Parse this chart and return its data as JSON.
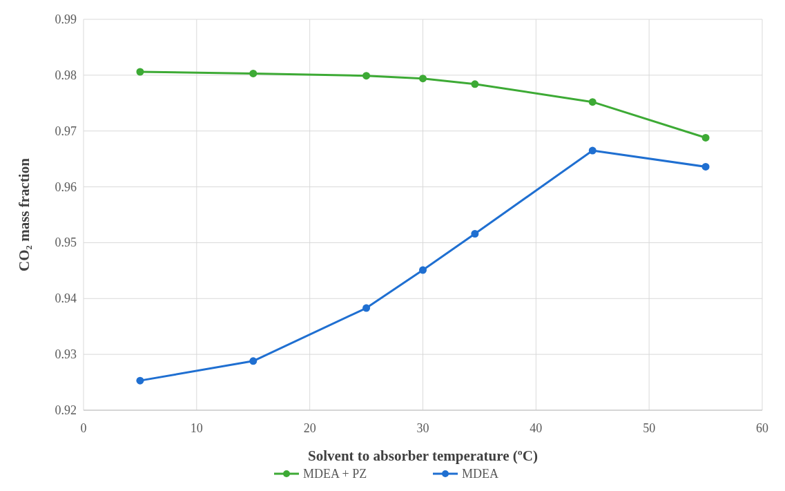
{
  "chart_data": {
    "type": "line",
    "xlabel": "Solvent to absorber temperature (ºC)",
    "ylabel": "CO₂  mass fraction",
    "x": [
      5,
      15,
      25,
      30,
      34.6,
      45,
      55
    ],
    "series": [
      {
        "name": "MDEA + PZ",
        "color": "#3daa35",
        "values": [
          0.9806,
          0.9803,
          0.9799,
          0.9794,
          0.9784,
          0.9752,
          0.9688
        ]
      },
      {
        "name": "MDEA",
        "color": "#1f6fd1",
        "values": [
          0.9253,
          0.9288,
          0.9383,
          0.9451,
          0.9516,
          0.9665,
          0.9636
        ]
      }
    ],
    "xlim": [
      0,
      60
    ],
    "xticks": [
      0,
      10,
      20,
      30,
      40,
      50,
      60
    ],
    "ylim": [
      0.92,
      0.99
    ],
    "yticks": [
      0.92,
      0.93,
      0.94,
      0.95,
      0.96,
      0.97,
      0.98,
      0.99
    ],
    "grid": true,
    "legend": "bottom",
    "marker": "circle",
    "line_style": "solid"
  }
}
